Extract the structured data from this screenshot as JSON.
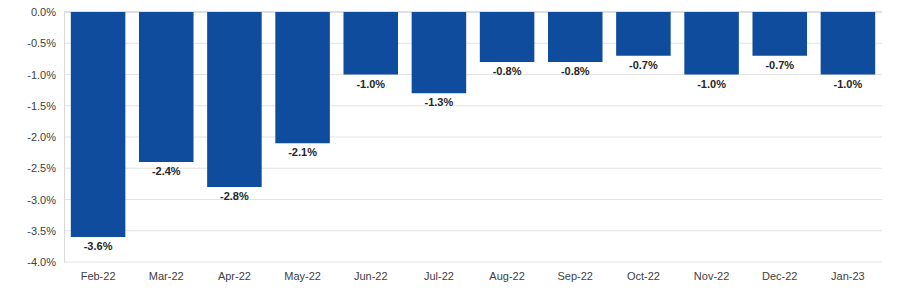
{
  "chart_data": {
    "type": "bar",
    "categories": [
      "Feb-22",
      "Mar-22",
      "Apr-22",
      "May-22",
      "Jun-22",
      "Jul-22",
      "Aug-22",
      "Sep-22",
      "Oct-22",
      "Nov-22",
      "Dec-22",
      "Jan-23"
    ],
    "values": [
      -3.6,
      -2.4,
      -2.8,
      -2.1,
      -1.0,
      -1.3,
      -0.8,
      -0.8,
      -0.7,
      -1.0,
      -0.7,
      -1.0
    ],
    "value_labels": [
      "-3.6%",
      "-2.4%",
      "-2.8%",
      "-2.1%",
      "-1.0%",
      "-1.3%",
      "-0.8%",
      "-0.8%",
      "-0.7%",
      "-1.0%",
      "-0.7%",
      "-1.0%"
    ],
    "color": "#0f4c9e",
    "ylim": [
      -4,
      0
    ],
    "yticks": [
      {
        "value": -4,
        "label": "-4.0%"
      },
      {
        "value": -3.5,
        "label": "-3.5%"
      },
      {
        "value": -3,
        "label": "-3.0%"
      },
      {
        "value": -2.5,
        "label": "-2.5%"
      },
      {
        "value": -2,
        "label": "-2.0%"
      },
      {
        "value": -1.5,
        "label": "-1.5%"
      },
      {
        "value": -1,
        "label": "-1.0%"
      },
      {
        "value": -0.5,
        "label": "-0.5%"
      },
      {
        "value": 0,
        "label": "0.0%"
      }
    ],
    "grid": true,
    "data_labels": true
  }
}
